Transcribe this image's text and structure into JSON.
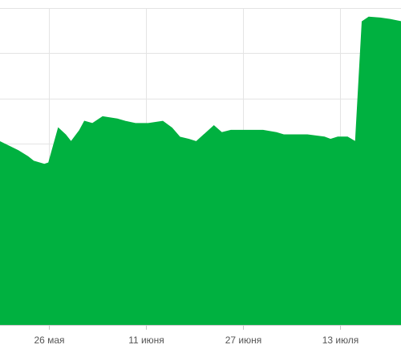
{
  "chart_data": {
    "type": "area",
    "title": "",
    "xlabel": "",
    "ylabel": "",
    "grid": true,
    "x_ticks": [
      {
        "value": 26,
        "label": "26 мая"
      },
      {
        "value": 42,
        "label": "11 июня"
      },
      {
        "value": 58,
        "label": "27 июня"
      },
      {
        "value": 74,
        "label": "13 июля"
      }
    ],
    "xlim": [
      18,
      84
    ],
    "ylim": [
      0,
      7
    ],
    "colors": {
      "fill": "#00b140",
      "grid": "#e4e4e4",
      "axis": "#c6c6c6",
      "tick_text": "#555555",
      "background": "#ffffff"
    },
    "series": [
      {
        "x": [
          18,
          21,
          22.6,
          23.5,
          25.3,
          26,
          27.6,
          28.8,
          29.7,
          31.1,
          31.9,
          33.2,
          34.9,
          37.3,
          38.6,
          40.3,
          42.4,
          44.8,
          46.3,
          47.6,
          49.1,
          50.3,
          53.2,
          54.5,
          56,
          57.9,
          61.3,
          63.5,
          64.7,
          67.4,
          68.6,
          71.4,
          72.4,
          73.6,
          75.2,
          76.5,
          77.6,
          78.7,
          80.6,
          82.2,
          84
        ],
        "y": [
          4.05,
          3.85,
          3.72,
          3.62,
          3.55,
          3.58,
          4.35,
          4.2,
          4.05,
          4.3,
          4.5,
          4.45,
          4.6,
          4.55,
          4.5,
          4.45,
          4.45,
          4.5,
          4.35,
          4.15,
          4.1,
          4.05,
          4.4,
          4.25,
          4.3,
          4.3,
          4.3,
          4.25,
          4.2,
          4.2,
          4.2,
          4.15,
          4.1,
          4.15,
          4.15,
          4.05,
          6.7,
          6.8,
          6.78,
          6.75,
          6.7
        ]
      }
    ]
  }
}
